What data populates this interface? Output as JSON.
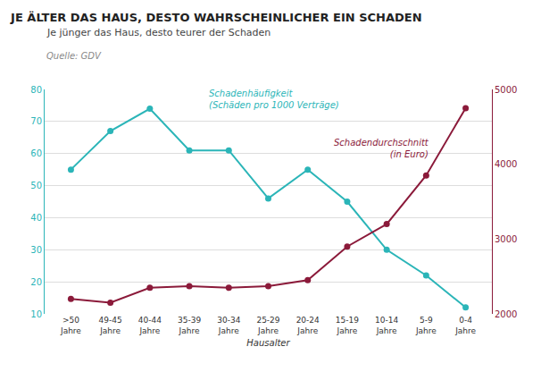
{
  "chart_data": {
    "type": "line",
    "title": "JE ÄLTER DAS HAUS, DESTO WAHRSCHEINLICHER EIN SCHADEN",
    "subtitle": "Je jünger das Haus, desto teurer der Schaden",
    "source": "Quelle: GDV",
    "xlabel": "Hausalter",
    "categories": [
      ">50\nJahre",
      "49-45\nJahre",
      "40-44\nJahre",
      "35-39\nJahre",
      "30-34\nJahre",
      "25-29\nJahre",
      "20-24\nJahre",
      "15-19\nJahre",
      "10-14\nJahre",
      "5-9\nJahre",
      "0-4\nJahre"
    ],
    "series": [
      {
        "color": "#2BB5B8",
        "values": [
          55,
          67,
          74,
          61,
          61,
          46,
          55,
          45,
          30,
          22,
          12
        ]
      },
      {
        "color": "#8B1A3A",
        "values": [
          2200,
          2150,
          2350,
          2370,
          2350,
          2370,
          2450,
          2900,
          3200,
          3850,
          4750
        ],
        "axis": "y2"
      }
    ],
    "ylim": [
      10,
      80
    ],
    "yticks": [
      10,
      20,
      30,
      40,
      50,
      60,
      70,
      80
    ],
    "y2lim": [
      2000,
      5000
    ],
    "y2ticks": [
      2000,
      3000,
      4000,
      5000
    ],
    "grid": true,
    "marker": "circle",
    "annotations": [
      {
        "text": "Schadenhäufigkeit\n(Schäden pro 1000 Verträge)",
        "axis": "y"
      },
      {
        "text": "Schadendurchschnitt\n(in Euro)",
        "axis": "y2"
      }
    ]
  }
}
